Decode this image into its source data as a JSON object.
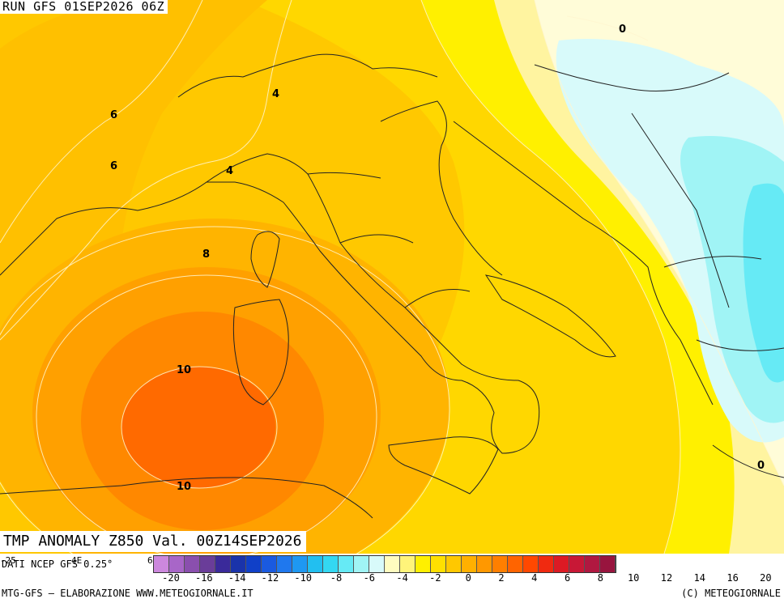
{
  "header": {
    "run_label": "RUN GFS 01SEP2026 06Z"
  },
  "product": {
    "label": "TMP ANOMALY Z850 Val. 00Z14SEP2026"
  },
  "map": {
    "contour_labels": [
      "0",
      "0",
      "4",
      "4",
      "6",
      "6",
      "8",
      "10",
      "10"
    ]
  },
  "legend": {
    "edge_ticks": [
      "-25",
      "4E",
      "6E"
    ],
    "source": "DATI NCEP GFS 0.25°",
    "tick_labels": [
      "-20",
      "-16",
      "-14",
      "-12",
      "-10",
      "-8",
      "-6",
      "-4",
      "-2",
      "0",
      "2",
      "4",
      "6",
      "8",
      "10",
      "12",
      "14",
      "16",
      "20"
    ],
    "colors": [
      "#cc88dd",
      "#a866c8",
      "#8a4fae",
      "#6a3d99",
      "#3a2a9a",
      "#1a33aa",
      "#1040c8",
      "#1a5ae0",
      "#1f78ee",
      "#1e98f2",
      "#22bff0",
      "#33d8f2",
      "#66eaf5",
      "#a0f4f5",
      "#d8fafa",
      "#fffcc0",
      "#fff47a",
      "#fff000",
      "#ffe000",
      "#ffc800",
      "#ffb000",
      "#ff9800",
      "#ff7f00",
      "#ff6400",
      "#ff4800",
      "#f02a10",
      "#dc1a24",
      "#c81836",
      "#b01840",
      "#98143e"
    ],
    "credit_left": "MTG-GFS — ELABORAZIONE WWW.METEOGIORNALE.IT",
    "credit_right": "(C) METEOGIORNALE"
  }
}
